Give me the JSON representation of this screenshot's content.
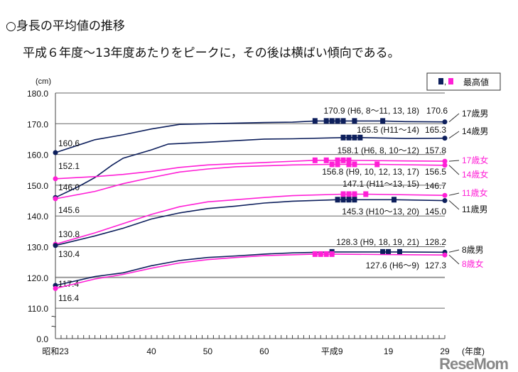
{
  "title": "○身長の平均値の推移",
  "subtitle": "平成６年度〜13年度あたりをピークに，その後は横ばい傾向である。",
  "watermark": "ReseMom",
  "chart_data": {
    "type": "line",
    "unit_label": "(cm)",
    "xlabel": "(年度)",
    "x_range": [
      1948,
      2017
    ],
    "y_range": [
      110,
      180
    ],
    "y_axis_break": true,
    "y_ticks": [
      "180.0",
      "170.0",
      "160.0",
      "150.0",
      "140.0",
      "130.0",
      "120.0",
      "110.0",
      "0.0"
    ],
    "x_ticks": [
      {
        "year": 1948,
        "label": "昭和23"
      },
      {
        "year": 1965,
        "label": "40"
      },
      {
        "year": 1975,
        "label": "50"
      },
      {
        "year": 1985,
        "label": "60"
      },
      {
        "year": 1997,
        "label": "平成9"
      },
      {
        "year": 2007,
        "label": "19"
      },
      {
        "year": 2017,
        "label": "29"
      }
    ],
    "grid": true,
    "legend": {
      "position": "top-right",
      "label": "最高値",
      "marker_colors": [
        "#0d1f5c",
        "#ff1fd6"
      ]
    },
    "colors": {
      "male": "#0d1f5c",
      "female": "#ff1fd6"
    },
    "series": [
      {
        "name": "17歳男",
        "sex": "male",
        "start_label": "160.6",
        "end_label": "170.6",
        "peak_label": "170.9 (H6, 8〜11, 13, 18)",
        "years": [
          1948,
          1955,
          1960,
          1965,
          1970,
          1975,
          1980,
          1985,
          1990,
          1994,
          2001,
          2006,
          2010,
          2017
        ],
        "values": [
          160.6,
          164.8,
          166.4,
          168.3,
          169.8,
          170.0,
          170.2,
          170.4,
          170.5,
          170.9,
          170.9,
          170.9,
          170.7,
          170.6
        ],
        "peak_years": [
          1994,
          1996,
          1997,
          1998,
          1999,
          2001,
          2006
        ],
        "peak_value": 170.9
      },
      {
        "name": "14歳男",
        "sex": "male",
        "start_label": "146.0",
        "end_label": "165.3",
        "peak_label": "165.5 (H11〜14)",
        "years": [
          1948,
          1952,
          1955,
          1958,
          1960,
          1965,
          1968,
          1975,
          1985,
          1990,
          1999,
          2002,
          2010,
          2017
        ],
        "values": [
          146.0,
          149.5,
          152.5,
          156.5,
          158.8,
          161.5,
          163.4,
          164.0,
          165.0,
          165.1,
          165.5,
          165.5,
          165.2,
          165.3
        ],
        "peak_years": [
          1999,
          2000,
          2001,
          2002
        ],
        "peak_value": 165.5
      },
      {
        "name": "17歳女",
        "sex": "female",
        "start_label": "152.1",
        "end_label": "157.8",
        "peak_label": "158.1 (H6, 8, 10〜12)",
        "years": [
          1948,
          1955,
          1960,
          1965,
          1970,
          1975,
          1980,
          1985,
          1994,
          2000,
          2010,
          2017
        ],
        "values": [
          152.1,
          152.8,
          153.5,
          154.5,
          155.8,
          156.6,
          157.0,
          157.4,
          158.1,
          158.1,
          157.9,
          157.8
        ],
        "peak_years": [
          1994,
          1996,
          1998,
          1999,
          2000
        ],
        "peak_value": 158.1
      },
      {
        "name": "14歳女",
        "sex": "female",
        "start_label": "145.6",
        "end_label": "156.5",
        "peak_label": "156.8 (H9, 10, 12, 13, 17)",
        "years": [
          1948,
          1955,
          1960,
          1965,
          1970,
          1975,
          1980,
          1985,
          1990,
          1997,
          2005,
          2017
        ],
        "values": [
          145.6,
          148.0,
          150.5,
          152.5,
          154.3,
          155.3,
          156.0,
          156.3,
          156.6,
          156.8,
          156.8,
          156.5
        ],
        "peak_years": [
          1997,
          1998,
          2000,
          2001,
          2005
        ],
        "peak_value": 156.8
      },
      {
        "name": "11歳女",
        "sex": "female",
        "start_label": "130.8",
        "end_label": "146.7",
        "peak_label": "147.1 (H11〜13, 15)",
        "years": [
          1948,
          1955,
          1960,
          1965,
          1970,
          1975,
          1980,
          1985,
          1990,
          1999,
          2003,
          2017
        ],
        "values": [
          130.8,
          134.5,
          137.5,
          140.5,
          143.0,
          144.6,
          145.3,
          146.0,
          146.6,
          147.1,
          147.1,
          146.7
        ],
        "peak_years": [
          1999,
          2000,
          2001,
          2003
        ],
        "peak_value": 147.1
      },
      {
        "name": "11歳男",
        "sex": "male",
        "start_label": "130.4",
        "end_label": "145.0",
        "peak_label": "145.3 (H10〜13, 20)",
        "years": [
          1948,
          1955,
          1960,
          1965,
          1970,
          1975,
          1980,
          1985,
          1990,
          1998,
          2001,
          2008,
          2017
        ],
        "values": [
          130.4,
          133.5,
          136.0,
          139.0,
          141.0,
          142.4,
          143.2,
          144.2,
          144.8,
          145.3,
          145.3,
          145.3,
          145.0
        ],
        "peak_years": [
          1998,
          1999,
          2000,
          2001,
          2008
        ],
        "peak_value": 145.3
      },
      {
        "name": "8歳男",
        "sex": "male",
        "start_label": "117.4",
        "end_label": "128.2",
        "peak_label": "128.3 (H9, 18, 19, 21)",
        "years": [
          1948,
          1955,
          1960,
          1965,
          1970,
          1975,
          1980,
          1985,
          1990,
          1997,
          2006,
          2009,
          2017
        ],
        "values": [
          117.4,
          120.3,
          121.5,
          123.8,
          125.5,
          126.5,
          127.0,
          127.6,
          128.0,
          128.3,
          128.3,
          128.3,
          128.2
        ],
        "peak_years": [
          1997,
          2006,
          2007,
          2009
        ],
        "peak_value": 128.3
      },
      {
        "name": "8歳女",
        "sex": "female",
        "start_label": "116.4",
        "end_label": "127.3",
        "peak_label": "127.6 (H6〜9)",
        "years": [
          1948,
          1955,
          1960,
          1965,
          1970,
          1975,
          1980,
          1985,
          1994,
          1997,
          2010,
          2017
        ],
        "values": [
          116.4,
          119.5,
          121.0,
          123.0,
          124.7,
          125.8,
          126.5,
          127.1,
          127.6,
          127.6,
          127.4,
          127.3
        ],
        "peak_years": [
          1994,
          1995,
          1996,
          1997
        ],
        "peak_value": 127.6
      }
    ]
  }
}
